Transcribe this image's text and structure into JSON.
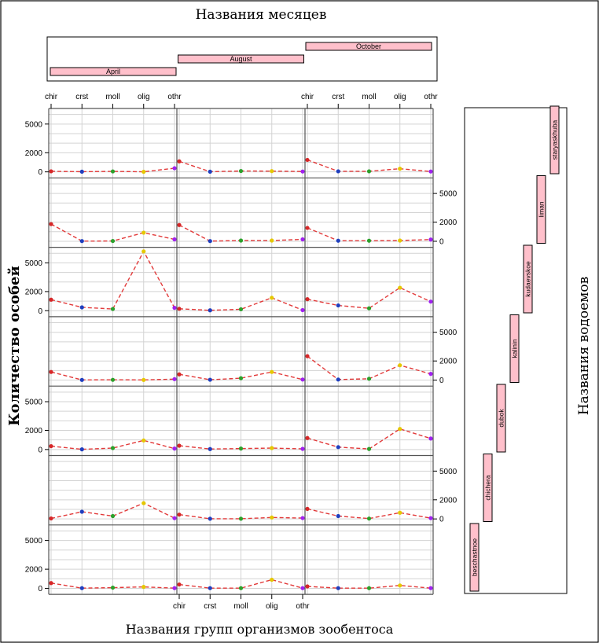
{
  "chart_data": {
    "type": "line",
    "top_title": "Названия месяцев",
    "xlabel": "Названия групп организмов зообентоса",
    "ylabel": "Количество особей",
    "right_title": "Названия водоемов",
    "months": [
      "April",
      "August",
      "October"
    ],
    "lakes": [
      "beschastnoe",
      "chichera",
      "dubok",
      "kalinin",
      "kudaevskoe",
      "liman",
      "staryaskhuba"
    ],
    "categories": [
      "chir",
      "crst",
      "moll",
      "olig",
      "othr"
    ],
    "y_ticks": [
      0,
      2000,
      5000
    ],
    "ylim": [
      -300,
      6300
    ],
    "grid": true,
    "point_colors": [
      "#d62728",
      "#1f3fbf",
      "#2ca02c",
      "#e5c800",
      "#a020f0"
    ],
    "line_color": "#e23a3a",
    "rows": [
      {
        "lake": "staryaskhuba",
        "series": [
          {
            "month": "April",
            "values": [
              60,
              20,
              50,
              10,
              380
            ]
          },
          {
            "month": "August",
            "values": [
              1100,
              20,
              90,
              80,
              40
            ]
          },
          {
            "month": "October",
            "values": [
              1250,
              60,
              60,
              330,
              40
            ]
          }
        ]
      },
      {
        "lake": "liman",
        "series": [
          {
            "month": "April",
            "values": [
              1800,
              20,
              30,
              900,
              200
            ]
          },
          {
            "month": "August",
            "values": [
              1700,
              20,
              80,
              80,
              200
            ]
          },
          {
            "month": "October",
            "values": [
              1400,
              60,
              60,
              80,
              180
            ]
          }
        ]
      },
      {
        "lake": "kudaevskoe",
        "series": [
          {
            "month": "April",
            "values": [
              1150,
              350,
              180,
              6200,
              300
            ]
          },
          {
            "month": "August",
            "values": [
              200,
              40,
              150,
              1350,
              60
            ]
          },
          {
            "month": "October",
            "values": [
              1200,
              550,
              250,
              2400,
              950
            ]
          }
        ]
      },
      {
        "lake": "kalinin",
        "series": [
          {
            "month": "April",
            "values": [
              850,
              20,
              30,
              20,
              100
            ]
          },
          {
            "month": "August",
            "values": [
              600,
              40,
              200,
              850,
              60
            ]
          },
          {
            "month": "October",
            "values": [
              2500,
              60,
              140,
              1550,
              650
            ]
          }
        ]
      },
      {
        "lake": "dubok",
        "series": [
          {
            "month": "April",
            "values": [
              350,
              20,
              150,
              950,
              100
            ]
          },
          {
            "month": "August",
            "values": [
              400,
              50,
              100,
              150,
              70
            ]
          },
          {
            "month": "October",
            "values": [
              1200,
              250,
              60,
              2150,
              1150
            ]
          }
        ]
      },
      {
        "lake": "chichera",
        "series": [
          {
            "month": "April",
            "values": [
              50,
              750,
              300,
              1650,
              80
            ]
          },
          {
            "month": "August",
            "values": [
              450,
              20,
              20,
              150,
              90
            ]
          },
          {
            "month": "October",
            "values": [
              1050,
              300,
              40,
              650,
              80
            ]
          }
        ]
      },
      {
        "lake": "beschastnoe",
        "series": [
          {
            "month": "April",
            "values": [
              550,
              20,
              70,
              150,
              20
            ]
          },
          {
            "month": "August",
            "values": [
              400,
              20,
              20,
              900,
              20
            ]
          },
          {
            "month": "October",
            "values": [
              200,
              20,
              20,
              300,
              20
            ]
          }
        ]
      }
    ]
  }
}
